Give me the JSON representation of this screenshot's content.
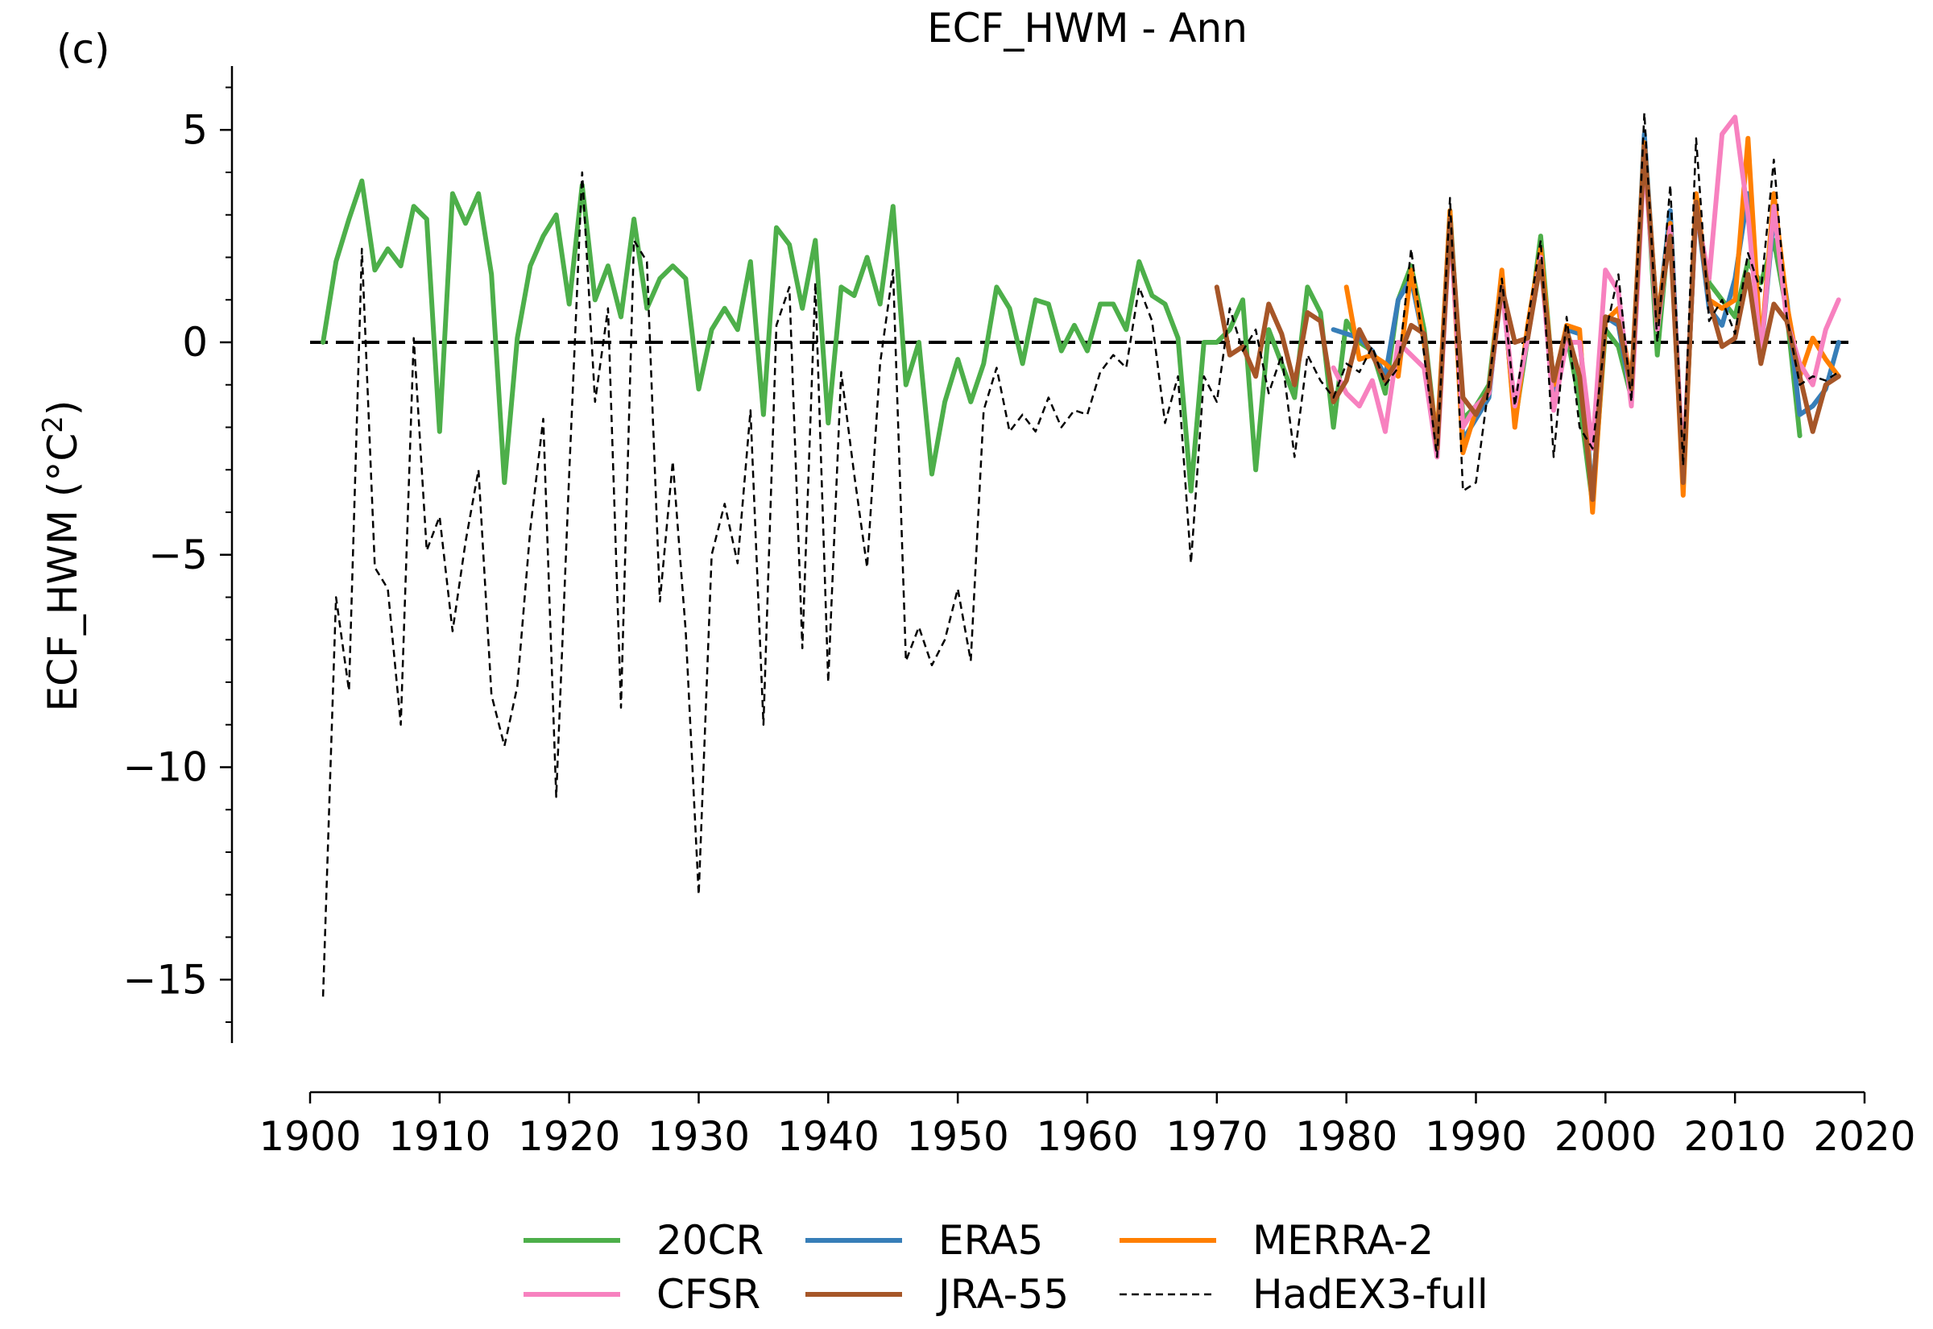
{
  "panel_label": "(c)",
  "chart_data": {
    "type": "line",
    "title": "ECF_HWM - Ann",
    "ylabel_base": "ECF_HWM (°C",
    "ylabel_sup": "2",
    "ylabel_end": ")",
    "xlabel": "",
    "xlim": [
      1900,
      2020
    ],
    "ylim": [
      -16.5,
      6.5
    ],
    "xticks": [
      1900,
      1910,
      1920,
      1930,
      1940,
      1950,
      1960,
      1970,
      1980,
      1990,
      2000,
      2010,
      2020
    ],
    "yticks": [
      5,
      0,
      -5,
      -10,
      -15
    ],
    "ytick_labels": [
      "5",
      "0",
      "−5",
      "−10",
      "−15"
    ],
    "zero_line": {
      "from": 1900,
      "to": 2019,
      "value": 0
    },
    "legend_placement": "below",
    "series": [
      {
        "name": "20CR",
        "color": "#4daf4a",
        "style": "solid",
        "start": 1901,
        "values": [
          0.0,
          1.9,
          2.9,
          3.8,
          1.7,
          2.2,
          1.8,
          3.2,
          2.9,
          -2.1,
          3.5,
          2.8,
          3.5,
          1.6,
          -3.3,
          0.1,
          1.8,
          2.5,
          3.0,
          0.9,
          3.7,
          1.0,
          1.8,
          0.6,
          2.9,
          0.8,
          1.5,
          1.8,
          1.5,
          -1.1,
          0.3,
          0.8,
          0.3,
          1.9,
          -1.7,
          2.7,
          2.3,
          0.8,
          2.4,
          -1.9,
          1.3,
          1.1,
          2.0,
          0.9,
          3.2,
          -1.0,
          0.0,
          -3.1,
          -1.4,
          -0.4,
          -1.4,
          -0.5,
          1.3,
          0.8,
          -0.5,
          1.0,
          0.9,
          -0.2,
          0.4,
          -0.2,
          0.9,
          0.9,
          0.3,
          1.9,
          1.1,
          0.9,
          0.1,
          -3.5,
          0.0,
          0.0,
          0.3,
          1.0,
          -3.0,
          0.3,
          -0.5,
          -1.3,
          1.3,
          0.7,
          -2.0,
          0.5,
          0.0,
          -0.2,
          -1.2,
          1.0,
          1.8,
          0.3,
          -2.4,
          3.1,
          -1.8,
          -1.5,
          -1.0,
          1.6,
          -1.9,
          0.1,
          2.5,
          -1.1,
          0.2,
          -1.4,
          -3.8,
          0.3,
          -0.1,
          -1.3,
          4.8,
          -0.3,
          3.0,
          -3.2,
          3.2,
          1.4,
          1.0,
          0.6,
          1.9,
          1.4,
          2.4,
          0.7,
          -2.2
        ]
      },
      {
        "name": "ERA5",
        "color": "#377eb8",
        "style": "solid",
        "start": 1979,
        "values": [
          0.3,
          0.2,
          0.1,
          -0.2,
          -0.8,
          1.0,
          1.5,
          0.0,
          -2.5,
          3.0,
          -2.3,
          -1.8,
          -1.3,
          1.5,
          -1.8,
          0.2,
          2.2,
          -1.2,
          0.3,
          0.2,
          -3.7,
          0.6,
          0.4,
          -1.3,
          4.9,
          0.4,
          3.1,
          -3.4,
          3.3,
          0.8,
          0.4,
          1.5,
          3.5,
          -0.3,
          3.0,
          1.0,
          -1.7,
          -1.5,
          -1.1,
          0.0
        ]
      },
      {
        "name": "MERRA-2",
        "color": "#ff7f00",
        "style": "solid",
        "start": 1980,
        "values": [
          1.3,
          -0.4,
          -0.3,
          -0.5,
          -0.8,
          1.7,
          0.0,
          -2.3,
          3.1,
          -2.6,
          -1.6,
          -1.2,
          1.7,
          -2.0,
          0.4,
          2.2,
          -1.0,
          0.4,
          0.3,
          -4.0,
          0.5,
          0.8,
          -1.0,
          4.7,
          0.5,
          2.8,
          -3.6,
          3.5,
          1.0,
          0.8,
          1.0,
          4.8,
          -0.2,
          3.5,
          0.9,
          -0.8,
          0.1,
          -0.4,
          -0.8
        ]
      },
      {
        "name": "CFSR",
        "color": "#f781bf",
        "style": "solid",
        "start": 1979,
        "values": [
          -0.6,
          -1.2,
          -1.5,
          -0.9,
          -2.1,
          0.0,
          -0.3,
          -0.6,
          -2.7,
          2.8,
          -2.0,
          -1.5,
          -1.2,
          1.3,
          -1.5,
          0.1,
          2.0,
          -1.6,
          0.0,
          0.0,
          -2.5,
          1.7,
          1.2,
          -1.5,
          4.4,
          0.3,
          2.7,
          -3.0,
          3.1,
          1.5,
          4.9,
          5.3,
          3.0,
          -0.3,
          3.2,
          0.5,
          -0.5,
          -1.0,
          0.3,
          1.0
        ]
      },
      {
        "name": "JRA-55",
        "color": "#a65628",
        "style": "solid",
        "start": 1970,
        "values": [
          1.3,
          -0.3,
          -0.1,
          -0.8,
          0.9,
          0.2,
          -1.0,
          0.7,
          0.5,
          -1.4,
          -0.9,
          0.3,
          -0.3,
          -0.9,
          -0.4,
          0.4,
          0.2,
          -2.5,
          2.9,
          -1.3,
          -1.7,
          -1.1,
          1.3,
          0.0,
          0.1,
          1.9,
          -0.9,
          0.3,
          -0.8,
          -3.7,
          0.6,
          0.5,
          -1.1,
          4.6,
          0.5,
          2.5,
          -3.3,
          3.3,
          1.0,
          -0.1,
          0.1,
          1.6,
          -0.5,
          0.9,
          0.5,
          -0.8,
          -2.1,
          -1.0,
          -0.8
        ]
      },
      {
        "name": "HadEX3-full",
        "color": "#000000",
        "style": "dashed",
        "start": 1901,
        "values": [
          -15.4,
          -6.0,
          -8.2,
          2.2,
          -5.3,
          -5.8,
          -9.0,
          0.1,
          -4.9,
          -4.1,
          -6.8,
          -4.7,
          -3.0,
          -8.3,
          -9.5,
          -8.1,
          -4.4,
          -1.8,
          -10.7,
          -3.1,
          4.0,
          -1.4,
          0.8,
          -8.6,
          2.4,
          1.9,
          -6.1,
          -2.8,
          -6.8,
          -13.0,
          -5.0,
          -3.8,
          -5.2,
          -1.6,
          -9.0,
          0.4,
          1.3,
          -7.2,
          1.4,
          -8.0,
          -0.7,
          -3.1,
          -5.3,
          -0.5,
          1.7,
          -7.5,
          -6.7,
          -7.6,
          -7.0,
          -5.8,
          -7.5,
          -1.6,
          -0.6,
          -2.1,
          -1.7,
          -2.1,
          -1.3,
          -2.0,
          -1.6,
          -1.7,
          -0.7,
          -0.3,
          -0.6,
          1.3,
          0.5,
          -1.9,
          -0.8,
          -5.2,
          -0.8,
          -1.4,
          0.8,
          -0.2,
          0.3,
          -1.2,
          -0.3,
          -2.7,
          -0.3,
          -0.9,
          -1.3,
          -0.5,
          -0.7,
          -0.1,
          -1.0,
          -0.6,
          2.2,
          -0.3,
          -2.7,
          3.4,
          -3.5,
          -3.3,
          -1.0,
          1.5,
          -1.5,
          0.5,
          2.4,
          -2.7,
          0.6,
          -2.0,
          -2.5,
          0.2,
          1.6,
          -1.4,
          5.4,
          0.0,
          3.7,
          -2.9,
          4.8,
          0.5,
          1.0,
          0.2,
          2.1,
          1.2,
          4.3,
          0.6,
          -1.0,
          -0.8,
          -0.9,
          -0.7
        ]
      }
    ],
    "legend": [
      {
        "name": "20CR",
        "color": "#4daf4a",
        "style": "solid"
      },
      {
        "name": "CFSR",
        "color": "#f781bf",
        "style": "solid"
      },
      {
        "name": "ERA5",
        "color": "#377eb8",
        "style": "solid"
      },
      {
        "name": "JRA-55",
        "color": "#a65628",
        "style": "solid"
      },
      {
        "name": "MERRA-2",
        "color": "#ff7f00",
        "style": "solid"
      },
      {
        "name": "HadEX3-full",
        "color": "#000000",
        "style": "dashed"
      }
    ]
  }
}
